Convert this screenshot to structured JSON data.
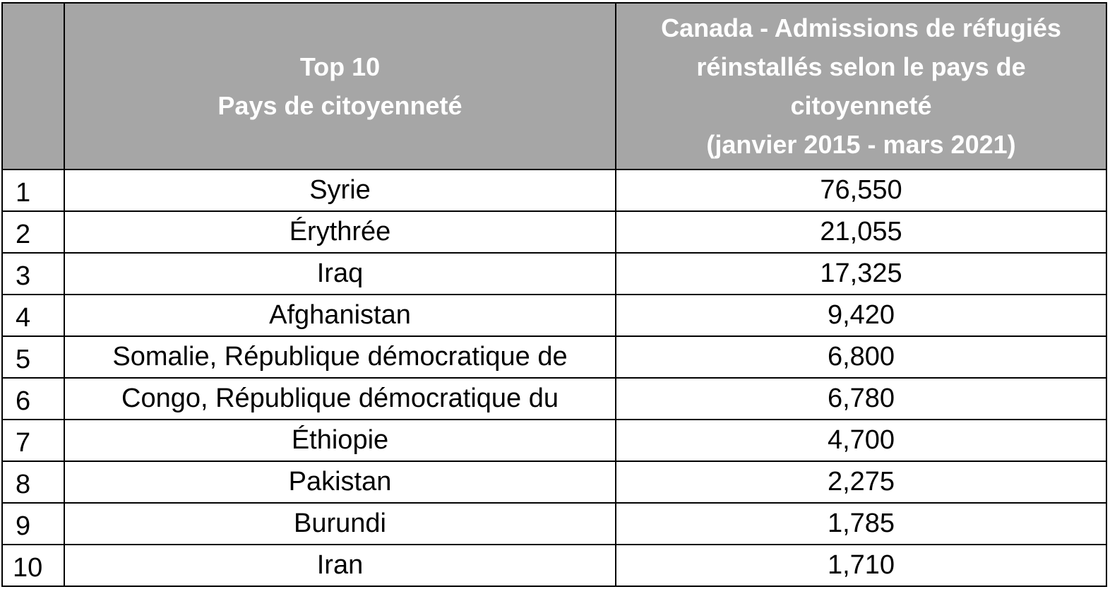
{
  "table": {
    "headers": {
      "rank": "",
      "country_line1": "Top 10",
      "country_line2": "Pays de citoyenneté",
      "value_line1": "Canada - Admissions de réfugiés",
      "value_line2": "réinstallés selon le pays de",
      "value_line3": "citoyenneté",
      "value_line4": "(janvier 2015 - mars 2021)"
    },
    "rows": [
      {
        "rank": "1",
        "country": "Syrie",
        "value": "76,550"
      },
      {
        "rank": "2",
        "country": "Érythrée",
        "value": "21,055"
      },
      {
        "rank": "3",
        "country": "Iraq",
        "value": "17,325"
      },
      {
        "rank": "4",
        "country": "Afghanistan",
        "value": "9,420"
      },
      {
        "rank": "5",
        "country": "Somalie, République démocratique de",
        "value": "6,800"
      },
      {
        "rank": "6",
        "country": "Congo, République démocratique du",
        "value": "6,780"
      },
      {
        "rank": "7",
        "country": "Éthiopie",
        "value": "4,700"
      },
      {
        "rank": "8",
        "country": "Pakistan",
        "value": "2,275"
      },
      {
        "rank": "9",
        "country": "Burundi",
        "value": "1,785"
      },
      {
        "rank": "10",
        "country": "Iran",
        "value": "1,710"
      }
    ],
    "colors": {
      "header_bg": "#a6a6a6",
      "header_text": "#ffffff",
      "border": "#000000"
    }
  }
}
